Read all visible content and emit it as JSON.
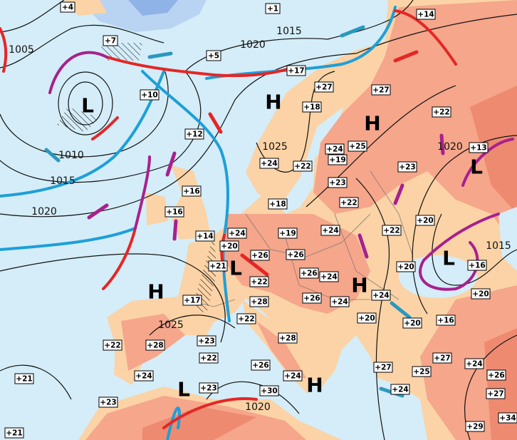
{
  "map": {
    "colors": {
      "sea": "#d4edf8",
      "land": "#fbd3a6",
      "warm_land": "#f5a68b",
      "hot_land": "#ee8a70",
      "cold": "#a9c8ee",
      "cold_front": "#1e9fd8",
      "warm_front": "#e52626",
      "occluded_front": "#a8208e",
      "wind_cold": "#2a98c0",
      "wind_warm": "#e52626",
      "wind_occluded": "#a8208e"
    },
    "temperatures": [
      "+4",
      "+1",
      "+14",
      "+7",
      "+5",
      "+17",
      "+27",
      "+27",
      "+10",
      "+18",
      "+22",
      "+12",
      "+13",
      "+24",
      "+25",
      "+19",
      "+24",
      "+22",
      "+23",
      "+23",
      "+16",
      "+22",
      "+18",
      "+16",
      "+22",
      "+20",
      "+24",
      "+19",
      "+14",
      "+24",
      "+20",
      "+26",
      "+26",
      "+21",
      "+16",
      "+20",
      "+26",
      "+24",
      "+22",
      "+20",
      "+24",
      "+17",
      "+28",
      "+26",
      "+24",
      "+22",
      "+20",
      "+20",
      "+16",
      "+23",
      "+22",
      "+28",
      "+22",
      "+27",
      "+26",
      "+27",
      "+25",
      "+24",
      "+26",
      "+24",
      "+24",
      "+28",
      "+23",
      "+30",
      "+24",
      "+27",
      "+21",
      "+23",
      "+21",
      "+29",
      "+34"
    ],
    "isobars": [
      "1005",
      "1015",
      "1020",
      "1010",
      "1015",
      "1020",
      "1025",
      "1020",
      "1025",
      "1020",
      "1015"
    ],
    "pressure_centers": [
      "L",
      "H",
      "H",
      "L",
      "L",
      "L",
      "H",
      "H",
      "H",
      "L"
    ]
  }
}
